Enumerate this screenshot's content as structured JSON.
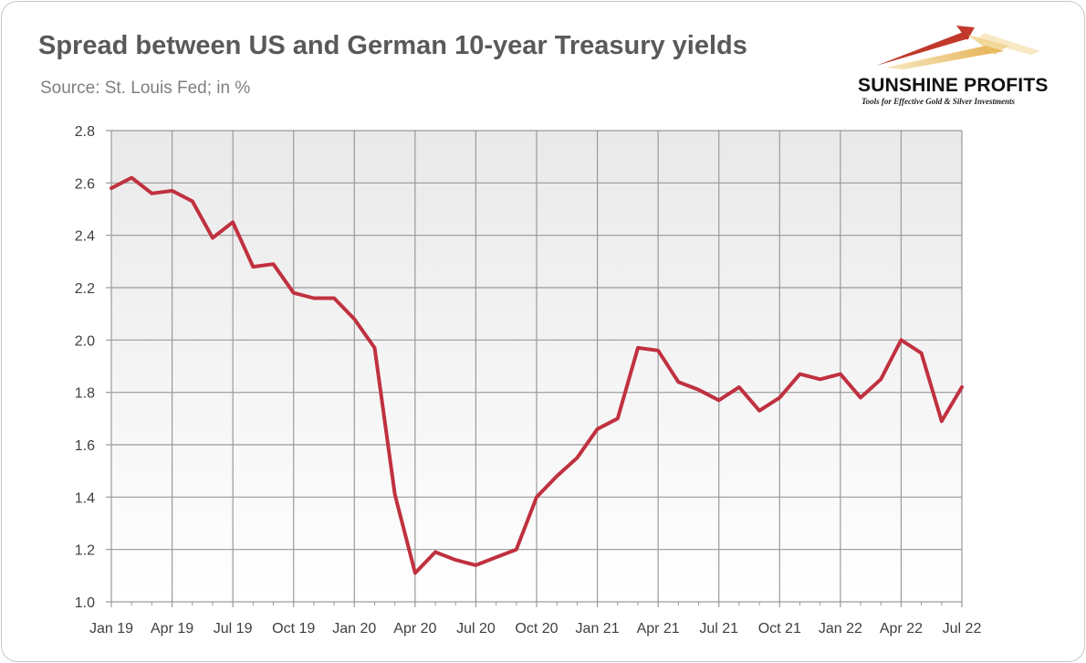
{
  "header": {
    "title": "Spread between US and German 10-year Treasury yields",
    "subtitle": "Source: St. Louis Fed; in %"
  },
  "logo": {
    "name": "SUNSHINE PROFITS",
    "tagline": "Tools for Effective Gold & Silver Investments",
    "colors": {
      "red": "#c0392b",
      "gold": "#e0a030"
    }
  },
  "colors": {
    "line": "#c0313f",
    "grid": "#9a9a9a",
    "plot_top": "#e9e9e9",
    "plot_bottom": "#ffffff"
  },
  "chart_data": {
    "type": "line",
    "title": "Spread between US and German 10-year Treasury yields",
    "subtitle": "Source: St. Louis Fed; in %",
    "x_tick_labels": [
      "Jan 19",
      "Apr 19",
      "Jul 19",
      "Oct 19",
      "Jan 20",
      "Apr 20",
      "Jul 20",
      "Oct 20",
      "Jan 21",
      "Apr 21",
      "Jul 21",
      "Oct 21",
      "Jan 22",
      "Apr 22",
      "Jul 22"
    ],
    "y_tick_labels": [
      "1.0",
      "1.2",
      "1.4",
      "1.6",
      "1.8",
      "2.0",
      "2.2",
      "2.4",
      "2.6",
      "2.8"
    ],
    "ylim": [
      1.0,
      2.8
    ],
    "grid": true,
    "legend": "none",
    "series": [
      {
        "x": [
          "2019-01",
          "2019-02",
          "2019-03",
          "2019-04",
          "2019-05",
          "2019-06",
          "2019-07",
          "2019-08",
          "2019-09",
          "2019-10",
          "2019-11",
          "2019-12",
          "2020-01",
          "2020-02",
          "2020-03",
          "2020-04",
          "2020-05",
          "2020-06",
          "2020-07",
          "2020-08",
          "2020-09",
          "2020-10",
          "2020-11",
          "2020-12",
          "2021-01",
          "2021-02",
          "2021-03",
          "2021-04",
          "2021-05",
          "2021-06",
          "2021-07",
          "2021-08",
          "2021-09",
          "2021-10",
          "2021-11",
          "2021-12",
          "2022-01",
          "2022-02",
          "2022-03",
          "2022-04",
          "2022-05",
          "2022-06",
          "2022-07"
        ],
        "values": [
          2.58,
          2.62,
          2.56,
          2.57,
          2.53,
          2.39,
          2.45,
          2.28,
          2.29,
          2.18,
          2.16,
          2.16,
          2.08,
          1.97,
          1.41,
          1.11,
          1.19,
          1.16,
          1.14,
          1.17,
          1.2,
          1.4,
          1.48,
          1.55,
          1.66,
          1.7,
          1.97,
          1.96,
          1.84,
          1.81,
          1.77,
          1.82,
          1.73,
          1.78,
          1.87,
          1.85,
          1.87,
          1.78,
          1.85,
          2.0,
          1.95,
          1.69,
          1.82
        ]
      }
    ]
  }
}
